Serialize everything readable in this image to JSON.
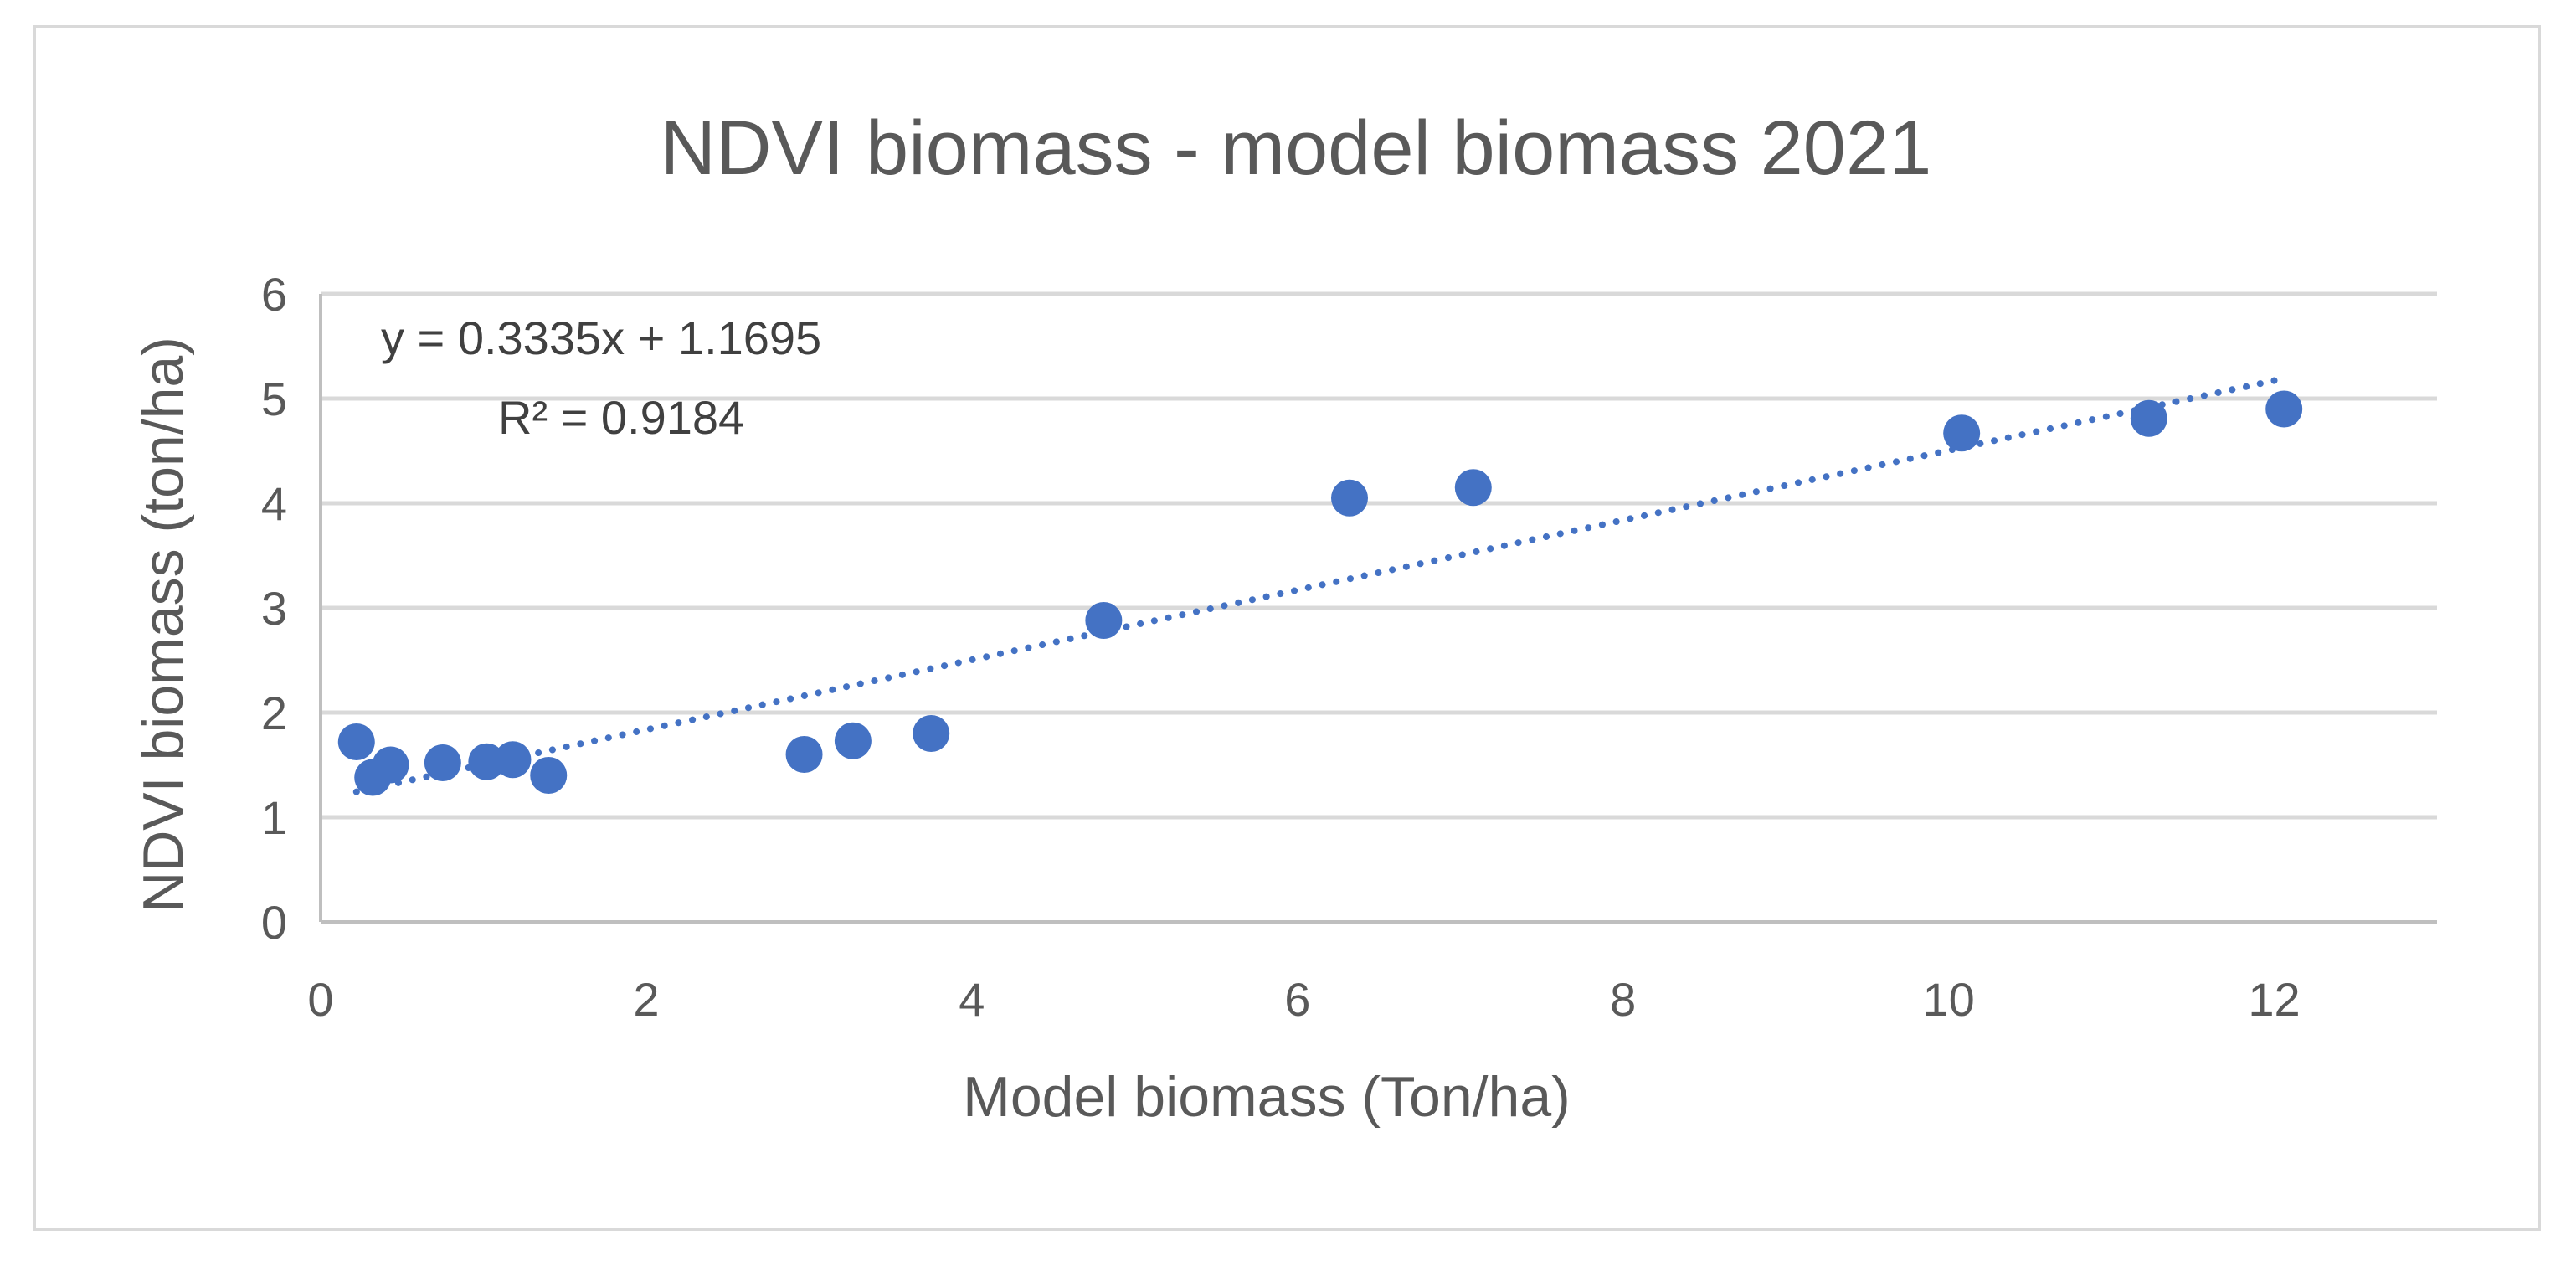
{
  "chart_data": {
    "type": "scatter",
    "title": "NDVI biomass - model biomass 2021",
    "xlabel": "Model biomass  (Ton/ha)",
    "ylabel": "NDVI biomass (ton/ha)",
    "xlim": [
      0,
      13
    ],
    "ylim": [
      0,
      6
    ],
    "xticks": [
      0,
      2,
      4,
      6,
      8,
      10,
      12
    ],
    "yticks": [
      0,
      1,
      2,
      3,
      4,
      5,
      6
    ],
    "grid": "horizontal",
    "legend": "none",
    "series": [
      {
        "name": "NDVI biomass",
        "color": "#4472c4",
        "x": [
          0.22,
          0.32,
          0.43,
          0.75,
          1.02,
          1.18,
          1.4,
          2.97,
          3.27,
          3.75,
          4.81,
          6.32,
          7.08,
          10.08,
          11.23,
          12.06
        ],
        "y": [
          1.72,
          1.38,
          1.5,
          1.52,
          1.53,
          1.55,
          1.4,
          1.6,
          1.73,
          1.8,
          2.88,
          4.05,
          4.15,
          4.67,
          4.81,
          4.9
        ]
      }
    ],
    "trendline": {
      "type": "linear",
      "slope": 0.3335,
      "intercept": 1.1695,
      "x_range": [
        0.22,
        12.06
      ],
      "equation": "y = 0.3335x + 1.1695",
      "r_squared": "R² = 0.9184"
    }
  }
}
